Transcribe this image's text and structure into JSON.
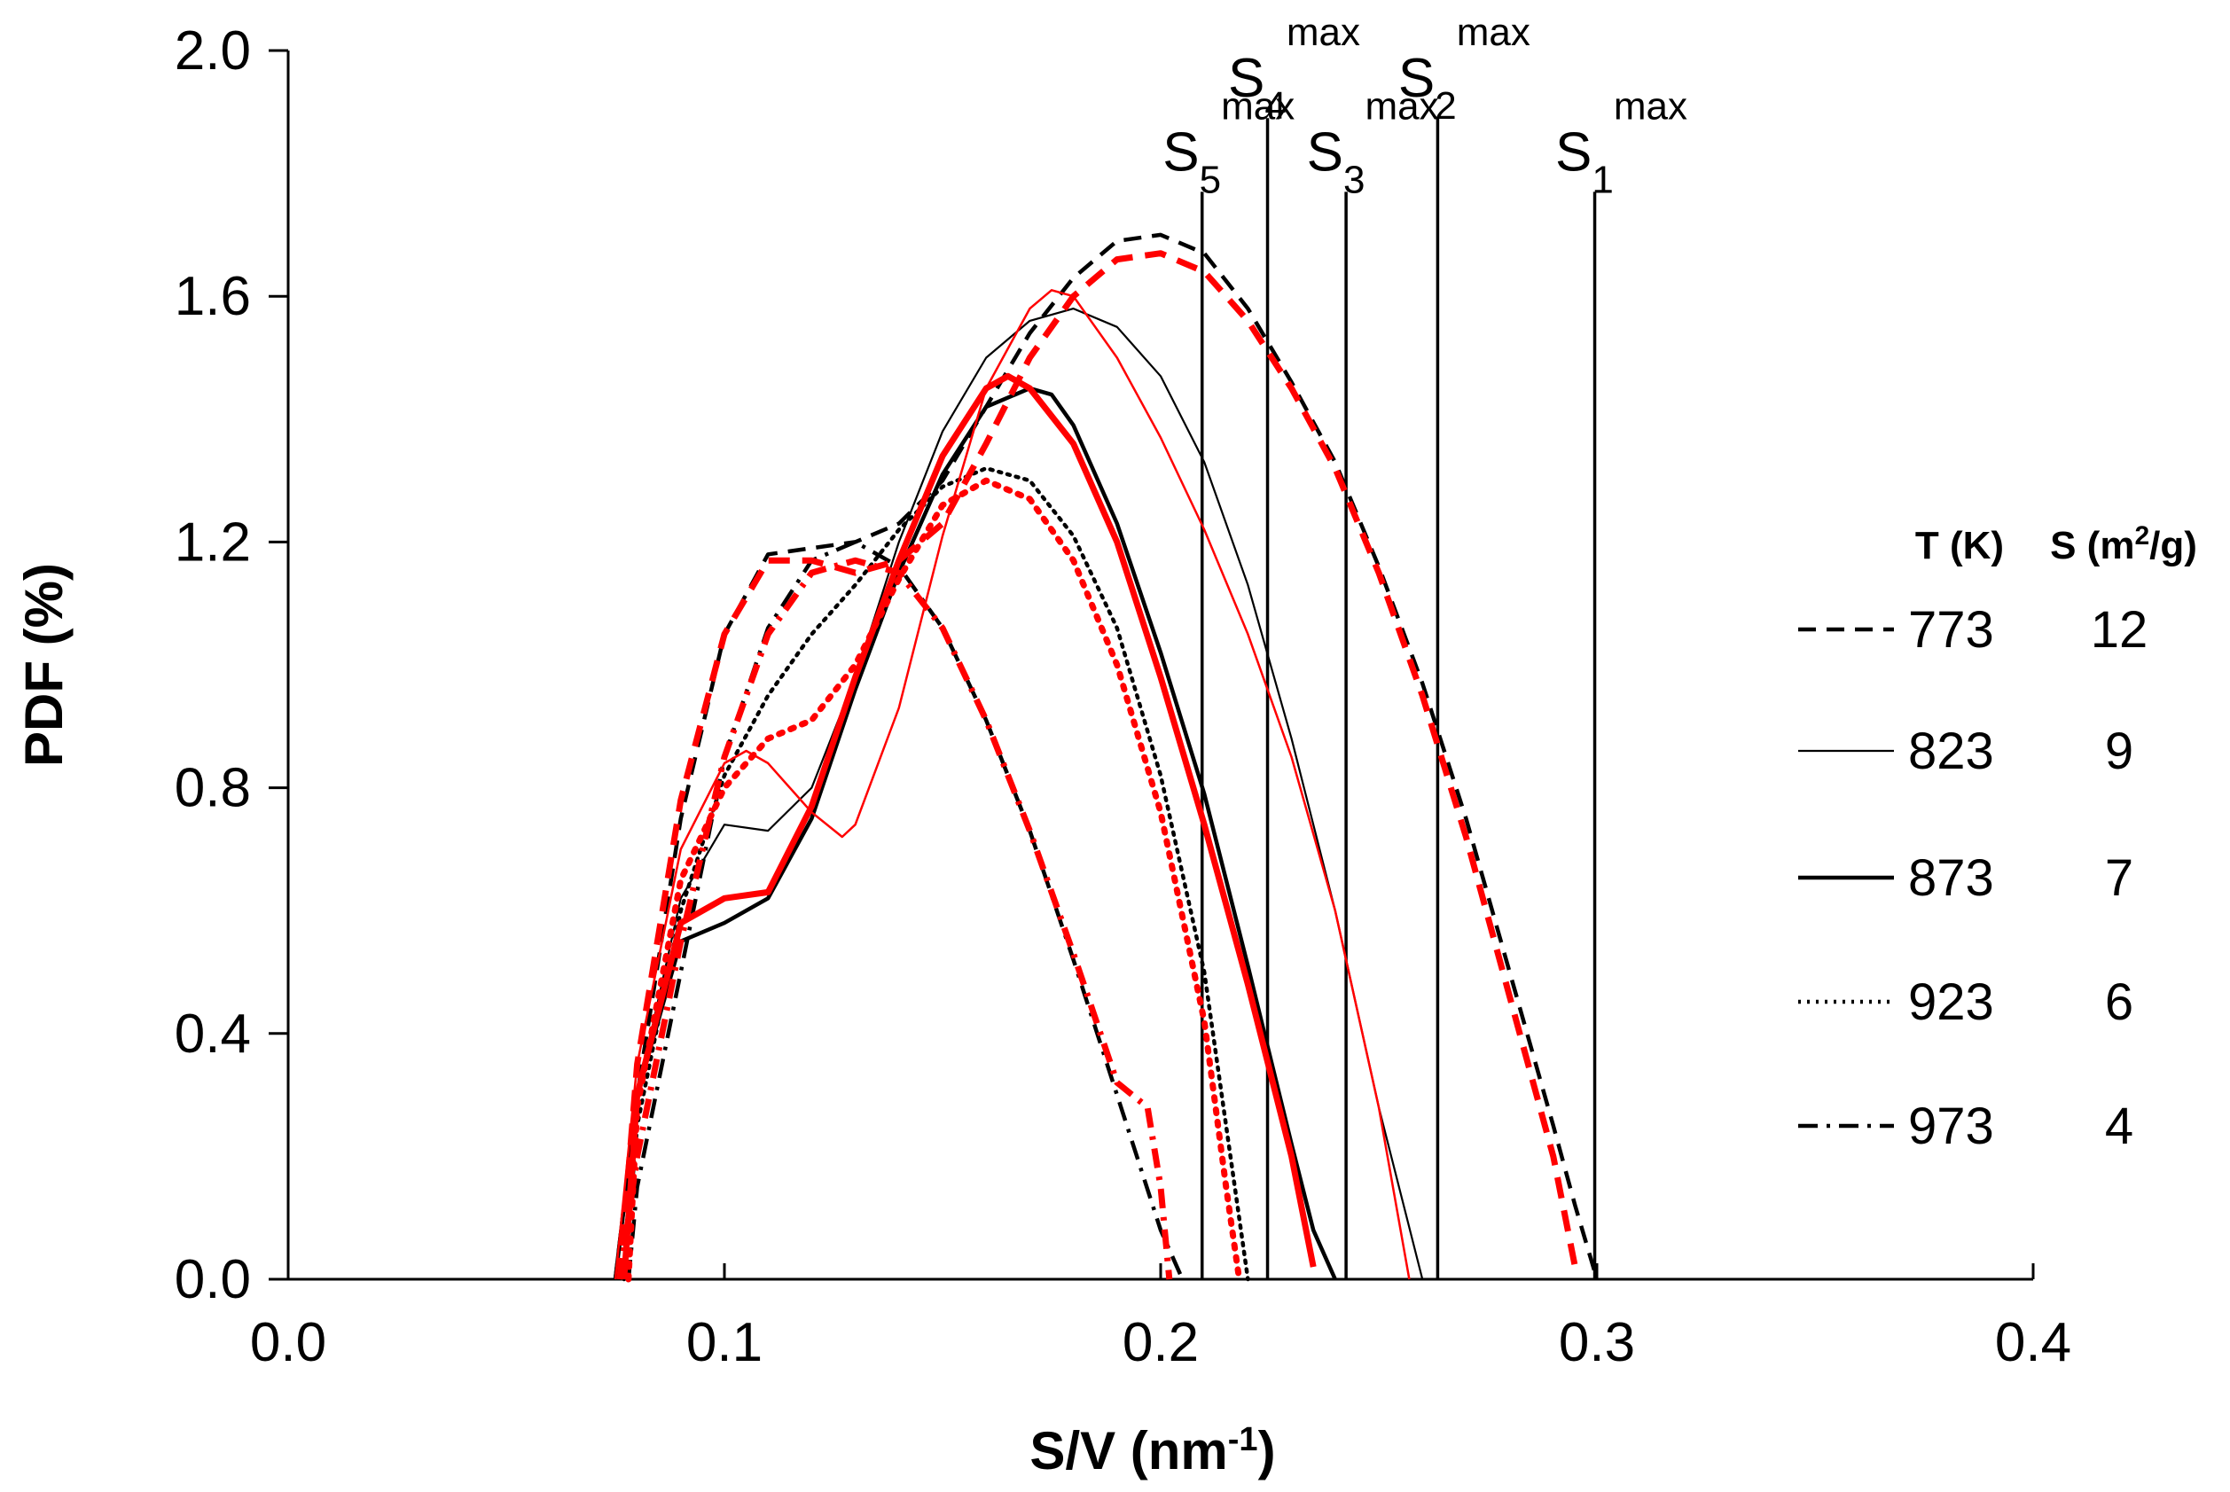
{
  "chart_data": {
    "type": "line",
    "title": "",
    "xlabel": "S/V (nm",
    "xlabel_sup": "-1",
    "xlabel_end": ")",
    "ylabel": "PDF (%)",
    "xlim": [
      0.0,
      0.4
    ],
    "ylim": [
      0.0,
      2.0
    ],
    "x_ticks": [
      0.0,
      0.1,
      0.2,
      0.3,
      0.4
    ],
    "x_tick_labels": [
      "0.0",
      "0.1",
      "0.2",
      "0.3",
      "0.4"
    ],
    "y_ticks": [
      0.0,
      0.4,
      0.8,
      1.2,
      1.6,
      2.0
    ],
    "y_tick_labels": [
      "0.0",
      "0.4",
      "0.8",
      "1.2",
      "1.6",
      "2.0"
    ],
    "grid": false,
    "colors": {
      "black": "#000000",
      "red": "#ff0000"
    },
    "legend": {
      "position": "right",
      "header_t": "T (K)",
      "header_s": "S (m",
      "header_s_sup": "2",
      "header_s_end": "/g)",
      "entries": [
        {
          "style": "dashed",
          "t": "773",
          "s": "12"
        },
        {
          "style": "thin",
          "t": "823",
          "s": "9"
        },
        {
          "style": "solid",
          "t": "873",
          "s": "7"
        },
        {
          "style": "dotted",
          "t": "923",
          "s": "6"
        },
        {
          "style": "dashdot",
          "t": "973",
          "s": "4"
        }
      ]
    },
    "smax_lines": [
      {
        "base": "S",
        "sub": "1",
        "sup": "max",
        "x": 0.2995,
        "y_top": 1.77
      },
      {
        "base": "S",
        "sub": "2",
        "sup": "max",
        "x": 0.2635,
        "y_top": 1.89
      },
      {
        "base": "S",
        "sub": "3",
        "sup": "max",
        "x": 0.2425,
        "y_top": 1.77
      },
      {
        "base": "S",
        "sub": "4",
        "sup": "max",
        "x": 0.2245,
        "y_top": 1.89
      },
      {
        "base": "S",
        "sub": "5",
        "sup": "max",
        "x": 0.2095,
        "y_top": 1.77
      }
    ],
    "series": [
      {
        "name": "773 K black",
        "T": "773",
        "color": "#000000",
        "style": "dashed",
        "x": [
          0.075,
          0.08,
          0.09,
          0.1,
          0.11,
          0.12,
          0.13,
          0.14,
          0.15,
          0.16,
          0.17,
          0.18,
          0.19,
          0.2,
          0.21,
          0.22,
          0.23,
          0.24,
          0.25,
          0.26,
          0.27,
          0.28,
          0.29,
          0.295,
          0.3
        ],
        "y": [
          0.0,
          0.3,
          0.75,
          1.05,
          1.18,
          1.19,
          1.2,
          1.23,
          1.3,
          1.42,
          1.54,
          1.63,
          1.69,
          1.7,
          1.67,
          1.58,
          1.46,
          1.33,
          1.16,
          0.97,
          0.75,
          0.5,
          0.25,
          0.12,
          0.0
        ]
      },
      {
        "name": "773 K red",
        "T": "773",
        "color": "#ff0000",
        "style": "dashed",
        "x": [
          0.076,
          0.08,
          0.09,
          0.1,
          0.11,
          0.12,
          0.13,
          0.14,
          0.15,
          0.16,
          0.17,
          0.18,
          0.19,
          0.2,
          0.21,
          0.22,
          0.23,
          0.24,
          0.25,
          0.26,
          0.27,
          0.28,
          0.29,
          0.295
        ],
        "y": [
          0.0,
          0.35,
          0.78,
          1.05,
          1.17,
          1.17,
          1.15,
          1.17,
          1.23,
          1.36,
          1.5,
          1.6,
          1.66,
          1.67,
          1.64,
          1.56,
          1.45,
          1.32,
          1.15,
          0.95,
          0.72,
          0.46,
          0.2,
          0.02
        ]
      },
      {
        "name": "823 K black",
        "T": "823",
        "color": "#000000",
        "style": "thin",
        "x": [
          0.075,
          0.08,
          0.09,
          0.1,
          0.11,
          0.12,
          0.13,
          0.14,
          0.15,
          0.16,
          0.17,
          0.18,
          0.19,
          0.2,
          0.21,
          0.22,
          0.23,
          0.24,
          0.25,
          0.26
        ],
        "y": [
          0.0,
          0.3,
          0.62,
          0.74,
          0.73,
          0.8,
          0.98,
          1.2,
          1.38,
          1.5,
          1.56,
          1.58,
          1.55,
          1.47,
          1.33,
          1.13,
          0.88,
          0.6,
          0.28,
          0.0
        ]
      },
      {
        "name": "823 K red",
        "T": "823",
        "color": "#ff0000",
        "style": "thin",
        "x": [
          0.075,
          0.08,
          0.09,
          0.1,
          0.105,
          0.11,
          0.12,
          0.127,
          0.13,
          0.14,
          0.15,
          0.16,
          0.17,
          0.175,
          0.18,
          0.19,
          0.2,
          0.21,
          0.22,
          0.23,
          0.24,
          0.25,
          0.257
        ],
        "y": [
          0.0,
          0.35,
          0.7,
          0.84,
          0.86,
          0.84,
          0.76,
          0.72,
          0.74,
          0.93,
          1.21,
          1.45,
          1.58,
          1.61,
          1.6,
          1.5,
          1.37,
          1.22,
          1.05,
          0.85,
          0.6,
          0.28,
          0.0
        ]
      },
      {
        "name": "873 K black",
        "T": "873",
        "color": "#000000",
        "style": "solid",
        "x": [
          0.075,
          0.08,
          0.09,
          0.1,
          0.11,
          0.12,
          0.13,
          0.14,
          0.15,
          0.16,
          0.17,
          0.175,
          0.18,
          0.19,
          0.2,
          0.21,
          0.22,
          0.23,
          0.235,
          0.24
        ],
        "y": [
          0.0,
          0.3,
          0.55,
          0.58,
          0.62,
          0.75,
          0.96,
          1.15,
          1.31,
          1.42,
          1.45,
          1.44,
          1.39,
          1.23,
          1.02,
          0.79,
          0.51,
          0.22,
          0.08,
          0.0
        ]
      },
      {
        "name": "873 K red",
        "T": "873",
        "color": "#ff0000",
        "style": "solid",
        "x": [
          0.077,
          0.08,
          0.09,
          0.1,
          0.11,
          0.12,
          0.13,
          0.14,
          0.15,
          0.16,
          0.165,
          0.17,
          0.18,
          0.19,
          0.2,
          0.21,
          0.22,
          0.23,
          0.235
        ],
        "y": [
          0.0,
          0.3,
          0.58,
          0.62,
          0.63,
          0.77,
          0.98,
          1.17,
          1.34,
          1.45,
          1.47,
          1.45,
          1.36,
          1.2,
          0.98,
          0.74,
          0.48,
          0.2,
          0.02
        ]
      },
      {
        "name": "923 K black",
        "T": "923",
        "color": "#000000",
        "style": "dotted",
        "x": [
          0.077,
          0.08,
          0.09,
          0.1,
          0.11,
          0.12,
          0.13,
          0.14,
          0.15,
          0.16,
          0.17,
          0.18,
          0.19,
          0.2,
          0.21,
          0.215,
          0.22
        ],
        "y": [
          0.0,
          0.25,
          0.6,
          0.82,
          0.95,
          1.05,
          1.13,
          1.22,
          1.29,
          1.32,
          1.3,
          1.21,
          1.06,
          0.82,
          0.5,
          0.25,
          0.0
        ]
      },
      {
        "name": "923 K red",
        "T": "923",
        "color": "#ff0000",
        "style": "dotted",
        "x": [
          0.078,
          0.08,
          0.09,
          0.1,
          0.11,
          0.12,
          0.13,
          0.14,
          0.15,
          0.16,
          0.17,
          0.18,
          0.19,
          0.2,
          0.21,
          0.215,
          0.218
        ],
        "y": [
          0.0,
          0.28,
          0.65,
          0.8,
          0.88,
          0.91,
          1.0,
          1.14,
          1.26,
          1.3,
          1.27,
          1.17,
          1.0,
          0.76,
          0.42,
          0.15,
          0.0
        ]
      },
      {
        "name": "973 K black",
        "T": "973",
        "color": "#000000",
        "style": "dashdot",
        "x": [
          0.078,
          0.08,
          0.09,
          0.1,
          0.11,
          0.12,
          0.13,
          0.14,
          0.15,
          0.16,
          0.17,
          0.18,
          0.19,
          0.2,
          0.205
        ],
        "y": [
          0.0,
          0.15,
          0.5,
          0.85,
          1.06,
          1.17,
          1.2,
          1.16,
          1.06,
          0.91,
          0.73,
          0.52,
          0.3,
          0.08,
          0.0
        ]
      },
      {
        "name": "973 K red",
        "T": "973",
        "color": "#ff0000",
        "style": "dashdot",
        "x": [
          0.076,
          0.08,
          0.09,
          0.1,
          0.11,
          0.12,
          0.13,
          0.14,
          0.15,
          0.16,
          0.17,
          0.18,
          0.19,
          0.197,
          0.2,
          0.202
        ],
        "y": [
          0.0,
          0.2,
          0.55,
          0.85,
          1.05,
          1.15,
          1.17,
          1.15,
          1.06,
          0.91,
          0.73,
          0.53,
          0.32,
          0.28,
          0.15,
          0.0
        ]
      }
    ]
  }
}
